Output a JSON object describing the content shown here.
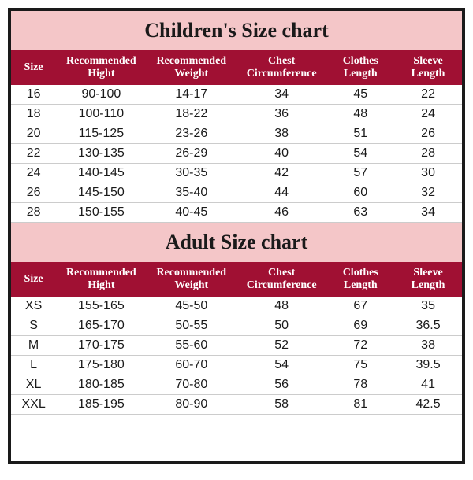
{
  "children": {
    "title": "Children's Size chart",
    "columns": [
      "Size",
      "Recommended Hight",
      "Recommended Weight",
      "Chest Circumference",
      "Clothes Length",
      "Sleeve Length"
    ],
    "rows": [
      [
        "16",
        "90-100",
        "14-17",
        "34",
        "45",
        "22"
      ],
      [
        "18",
        "100-110",
        "18-22",
        "36",
        "48",
        "24"
      ],
      [
        "20",
        "115-125",
        "23-26",
        "38",
        "51",
        "26"
      ],
      [
        "22",
        "130-135",
        "26-29",
        "40",
        "54",
        "28"
      ],
      [
        "24",
        "140-145",
        "30-35",
        "42",
        "57",
        "30"
      ],
      [
        "26",
        "145-150",
        "35-40",
        "44",
        "60",
        "32"
      ],
      [
        "28",
        "150-155",
        "40-45",
        "46",
        "63",
        "34"
      ]
    ]
  },
  "adult": {
    "title": "Adult Size chart",
    "columns": [
      "Size",
      "Recommended Hight",
      "Recommended Weight",
      "Chest Circumference",
      "Clothes Length",
      "Sleeve Length"
    ],
    "rows": [
      [
        "XS",
        "155-165",
        "45-50",
        "48",
        "67",
        "35"
      ],
      [
        "S",
        "165-170",
        "50-55",
        "50",
        "69",
        "36.5"
      ],
      [
        "M",
        "170-175",
        "55-60",
        "52",
        "72",
        "38"
      ],
      [
        "L",
        "175-180",
        "60-70",
        "54",
        "75",
        "39.5"
      ],
      [
        "XL",
        "180-185",
        "70-80",
        "56",
        "78",
        "41"
      ],
      [
        "XXL",
        "185-195",
        "80-90",
        "58",
        "81",
        "42.5"
      ]
    ]
  },
  "style": {
    "title_bg": "#f4c6c8",
    "header_bg": "#a01033",
    "header_fg": "#ffffff",
    "border_color": "#1a1a1a",
    "row_border": "#cccccc",
    "title_fontsize": 26,
    "header_fontsize": 14,
    "cell_fontsize": 16
  }
}
